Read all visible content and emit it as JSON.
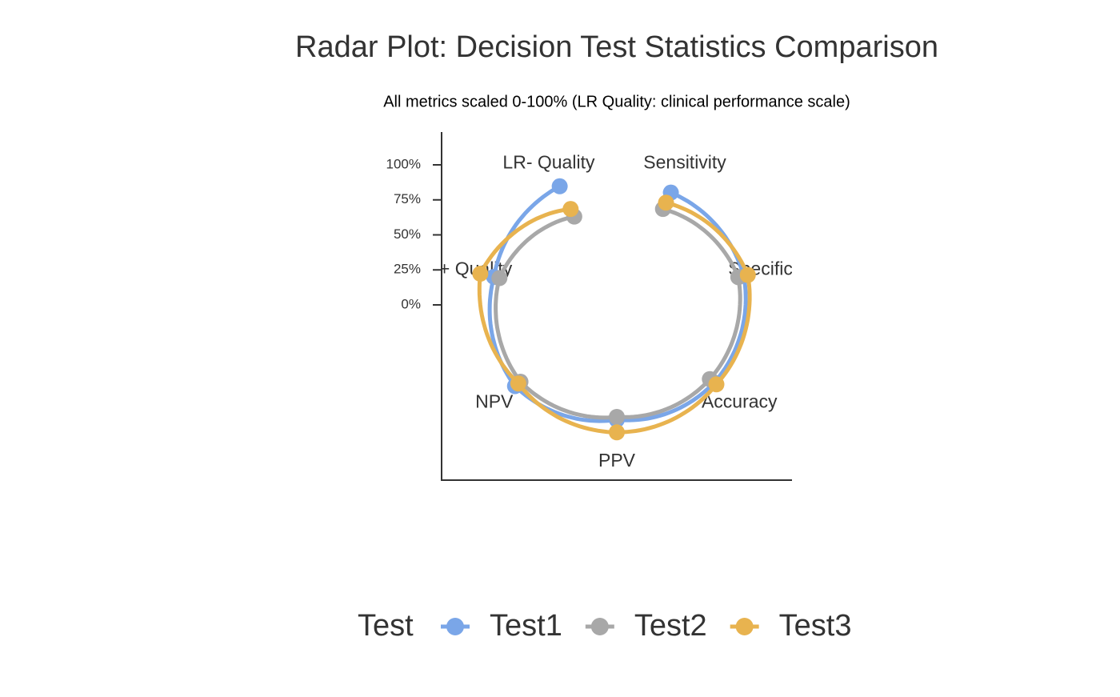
{
  "chart_data": {
    "type": "radar",
    "title": "Radar Plot: Decision Test Statistics Comparison",
    "subtitle": "All metrics scaled 0-100% (LR Quality: clinical performance scale)",
    "categories": [
      "Sensitivity",
      "Specificity",
      "Accuracy",
      "PPV",
      "NPV",
      "LR+ Quality",
      "LR- Quality"
    ],
    "series": [
      {
        "name": "Test1",
        "color": "#7aa6e8",
        "values": [
          89,
          93,
          89,
          82,
          93,
          90,
          94
        ]
      },
      {
        "name": "Test2",
        "color": "#a8a8a8",
        "values": [
          76,
          89,
          85,
          80,
          88,
          86,
          70
        ]
      },
      {
        "name": "Test3",
        "color": "#e8b34f",
        "values": [
          81,
          96,
          91,
          91,
          90,
          100,
          76
        ]
      }
    ],
    "ylim": [
      0,
      100
    ],
    "yticks": [
      {
        "value": 0,
        "label": "0%"
      },
      {
        "value": 25,
        "label": "25%"
      },
      {
        "value": 50,
        "label": "50%"
      },
      {
        "value": 75,
        "label": "75%"
      },
      {
        "value": 100,
        "label": "100%"
      }
    ],
    "legend_title": "Test",
    "legend_position": "bottom"
  }
}
